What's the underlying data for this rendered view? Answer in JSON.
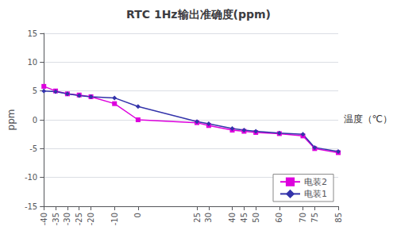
{
  "chart_data": {
    "type": "line",
    "title": "RTC 1Hz输出准确度(ppm)",
    "ylabel": "ppm",
    "xlabel": "温度（℃）",
    "x": [
      -40,
      -35,
      -30,
      -25,
      -20,
      -10,
      0,
      25,
      30,
      40,
      45,
      50,
      60,
      70,
      75,
      85
    ],
    "xlim": [
      -40,
      85
    ],
    "xticks": [
      -40,
      -35,
      -30,
      -25,
      -20,
      -10,
      0,
      25,
      30,
      40,
      45,
      50,
      60,
      70,
      75,
      85
    ],
    "ylim": [
      -15,
      15
    ],
    "yticks": [
      -15,
      -10,
      -5,
      0,
      5,
      10,
      15
    ],
    "grid": true,
    "legend": "lower right",
    "series": [
      {
        "name": "电装2",
        "color": "#dd00dd",
        "marker": "square",
        "values": [
          5.8,
          5.0,
          4.5,
          4.3,
          4.0,
          2.8,
          0.0,
          -0.5,
          -1.0,
          -1.8,
          -2.0,
          -2.2,
          -2.4,
          -2.8,
          -5.0,
          -5.7
        ]
      },
      {
        "name": "电装1",
        "color": "#3333aa",
        "marker": "diamond",
        "values": [
          5.0,
          4.9,
          4.5,
          4.2,
          4.0,
          3.8,
          2.3,
          -0.3,
          -0.7,
          -1.5,
          -1.8,
          -2.0,
          -2.3,
          -2.5,
          -4.8,
          -5.5
        ]
      }
    ]
  }
}
